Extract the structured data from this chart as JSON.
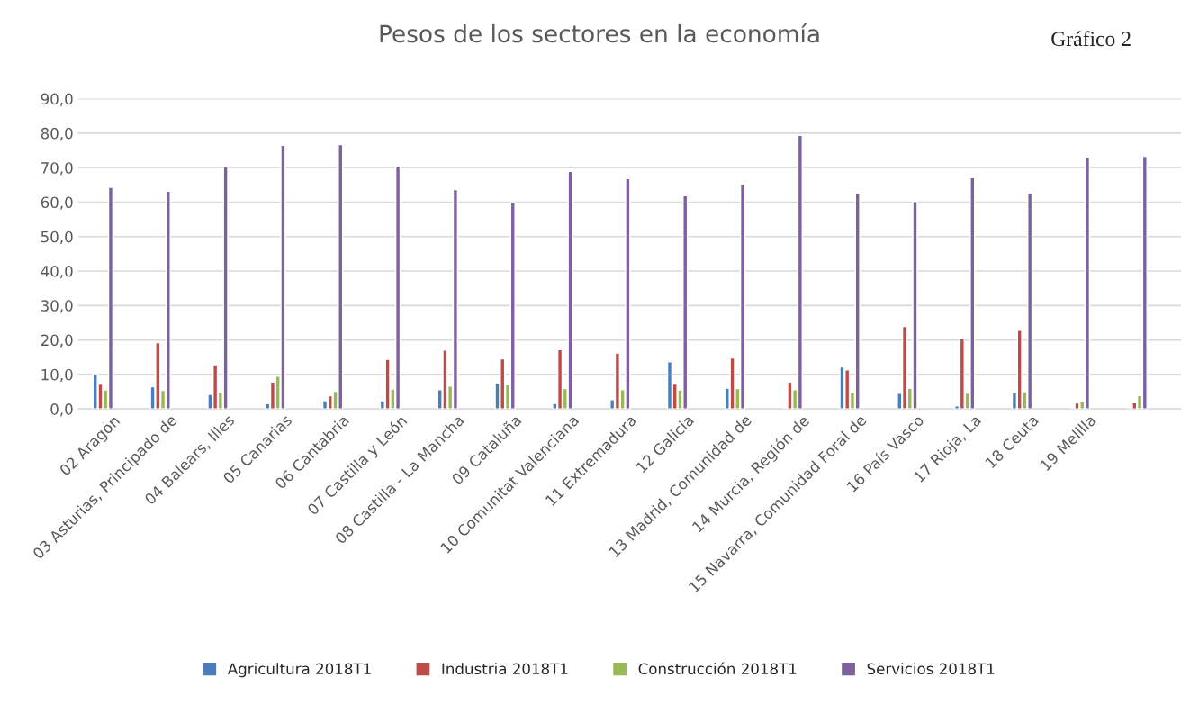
{
  "chart_data": {
    "type": "bar",
    "title": "Pesos de los sectores en la economía",
    "annotations": [
      "Gráfico 2"
    ],
    "categories": [
      "02 Aragón",
      "03 Asturias, Principado de",
      "04 Balears, Illes",
      "05 Canarias",
      "06 Cantabria",
      "07 Castilla y León",
      "08 Castilla - La Mancha",
      "09 Cataluña",
      "10 Comunitat Valenciana",
      "11 Extremadura",
      "12 Galicia",
      "13 Madrid, Comunidad de",
      "14 Murcia, Región de",
      "15 Navarra, Comunidad Foral de",
      "16 País Vasco",
      "17 Rioja, La",
      "18 Ceuta",
      "19 Melilla",
      null
    ],
    "series": [
      {
        "name": "Agricultura 2018T1",
        "color": "#4a7ebb",
        "values": [
          10.2,
          6.4,
          4.2,
          1.5,
          2.4,
          2.4,
          5.6,
          7.5,
          1.6,
          2.7,
          13.7,
          6.0,
          null,
          12.2,
          4.5,
          0.9,
          4.8,
          null,
          null
        ]
      },
      {
        "name": "Industria 2018T1",
        "color": "#be4b48",
        "values": [
          7.2,
          19.2,
          12.8,
          7.8,
          3.8,
          14.4,
          17.1,
          14.5,
          17.2,
          16.2,
          7.2,
          14.8,
          7.8,
          11.3,
          23.9,
          20.6,
          22.8,
          1.7,
          1.8
        ]
      },
      {
        "name": "Construcción 2018T1",
        "color": "#98b954",
        "values": [
          5.5,
          5.4,
          4.9,
          9.5,
          5.1,
          5.8,
          6.6,
          7.0,
          5.9,
          5.6,
          5.5,
          5.9,
          5.6,
          4.8,
          6.0,
          4.6,
          5.0,
          2.2,
          3.9
        ]
      },
      {
        "name": "Servicios 2018T1",
        "color": "#7d60a0",
        "values": [
          64.3,
          63.2,
          70.2,
          76.5,
          76.7,
          70.5,
          63.6,
          59.9,
          68.9,
          66.8,
          61.9,
          65.2,
          79.4,
          62.6,
          60.2,
          67.1,
          62.6,
          73.0,
          73.3
        ]
      }
    ],
    "ylim": [
      0,
      90
    ],
    "yticks": [
      {
        "value": 0,
        "label": "0,0"
      },
      {
        "value": 10,
        "label": "10,0"
      },
      {
        "value": 20,
        "label": "20,0"
      },
      {
        "value": 30,
        "label": "30,0"
      },
      {
        "value": 40,
        "label": "40,0"
      },
      {
        "value": 50,
        "label": "50,0"
      },
      {
        "value": 60,
        "label": "60,0"
      },
      {
        "value": 70,
        "label": "70,0"
      },
      {
        "value": 80,
        "label": "80,0"
      },
      {
        "value": 90,
        "label": "90,0"
      }
    ],
    "grid": "y",
    "legend": "bottom"
  }
}
